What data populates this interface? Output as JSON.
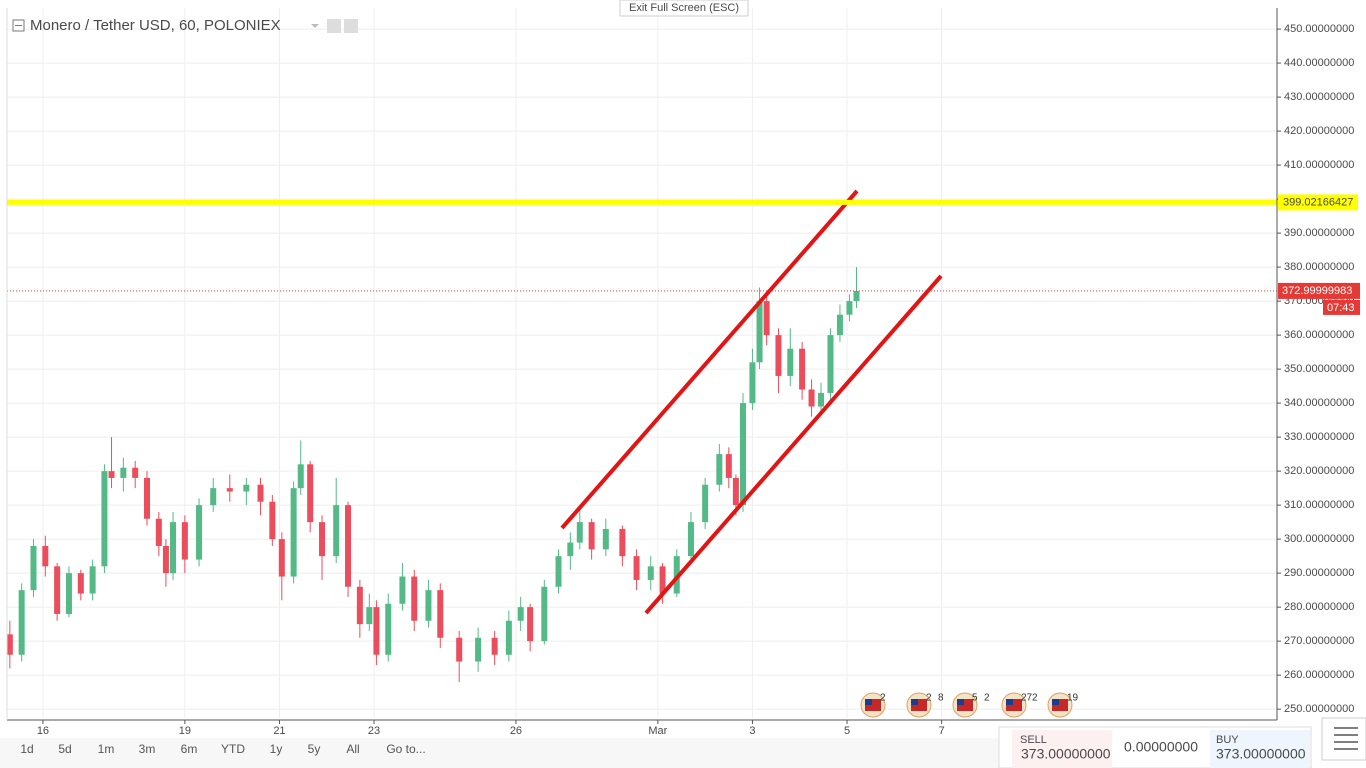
{
  "toolbar": {
    "symbol": "Monero / Tether USD, 60, POLONIEX",
    "exit": "Exit Full Screen (ESC)"
  },
  "chart_data": {
    "type": "candlestick",
    "x": [
      15.3,
      15.55,
      15.8,
      16.05,
      16.3,
      16.55,
      16.8,
      17.05,
      17.3,
      17.45,
      17.7,
      17.95,
      18.2,
      18.45,
      18.6,
      18.75,
      19.0,
      19.3,
      19.6,
      19.95,
      20.3,
      20.6,
      20.85,
      21.05,
      21.3,
      21.45,
      21.65,
      21.9,
      22.2,
      22.45,
      22.7,
      22.9,
      23.05,
      23.3,
      23.6,
      23.85,
      24.15,
      24.4,
      24.8,
      25.2,
      25.55,
      25.85,
      26.1,
      26.3,
      26.6,
      26.9,
      27.15,
      27.35,
      27.6,
      27.9,
      28.25,
      28.55,
      28.85,
      29.1,
      29.4,
      29.7,
      30.0,
      30.3,
      30.5,
      30.65,
      30.8,
      31.0,
      31.15,
      31.3,
      31.55,
      31.8,
      32.05,
      32.25,
      32.45,
      32.65,
      32.85,
      33.05,
      33.2
    ],
    "open": [
      272,
      266,
      285,
      298,
      292,
      278,
      290,
      284,
      292,
      320,
      318,
      321,
      318,
      306,
      298,
      290,
      305,
      294,
      310,
      315,
      314,
      316,
      311,
      300,
      289,
      315,
      322,
      305,
      295,
      310,
      286,
      275,
      280,
      266,
      281,
      289,
      276,
      285,
      271,
      264,
      271,
      266,
      276,
      280,
      270,
      286,
      295,
      299,
      305,
      297,
      303,
      295,
      288,
      292,
      284,
      295,
      305,
      316,
      325,
      318,
      310,
      340,
      352,
      370,
      360,
      348,
      356,
      344,
      339,
      343,
      360,
      366,
      370
    ],
    "high": [
      276,
      287,
      300,
      301,
      293,
      292,
      291,
      294,
      322,
      330,
      324,
      323,
      320,
      308,
      300,
      308,
      307,
      312,
      318,
      319,
      318,
      318,
      313,
      302,
      317,
      329,
      323,
      307,
      318,
      311,
      288,
      284,
      282,
      284,
      293,
      291,
      288,
      287,
      273,
      274,
      273,
      279,
      283,
      281,
      288,
      297,
      302,
      309,
      306,
      306,
      304,
      297,
      295,
      293,
      297,
      308,
      318,
      328,
      327,
      319,
      343,
      356,
      374,
      372,
      362,
      362,
      358,
      347,
      346,
      362,
      369,
      372,
      380
    ],
    "low": [
      262,
      264,
      283,
      289,
      276,
      277,
      282,
      282,
      290,
      315,
      314,
      315,
      304,
      295,
      286,
      288,
      290,
      292,
      308,
      311,
      310,
      307,
      298,
      282,
      287,
      313,
      302,
      288,
      293,
      283,
      271,
      273,
      263,
      264,
      279,
      273,
      274,
      268,
      258,
      261,
      263,
      264,
      273,
      267,
      269,
      284,
      291,
      297,
      294,
      295,
      292,
      285,
      285,
      281,
      283,
      293,
      303,
      314,
      315,
      307,
      308,
      338,
      350,
      357,
      343,
      345,
      341,
      336,
      337,
      341,
      358,
      364,
      368
    ],
    "close": [
      266,
      285,
      298,
      292,
      278,
      290,
      284,
      292,
      320,
      318,
      321,
      318,
      306,
      298,
      290,
      305,
      294,
      310,
      315,
      314,
      316,
      311,
      300,
      289,
      315,
      322,
      305,
      295,
      310,
      286,
      275,
      280,
      266,
      281,
      289,
      276,
      285,
      271,
      264,
      271,
      266,
      276,
      280,
      270,
      286,
      295,
      299,
      305,
      297,
      303,
      295,
      288,
      292,
      284,
      295,
      305,
      316,
      325,
      318,
      310,
      340,
      352,
      370,
      360,
      348,
      356,
      344,
      339,
      343,
      360,
      366,
      370,
      373
    ],
    "up_color": "#53b987",
    "down_color": "#eb4d5c",
    "xlim": [
      15.24,
      42.09
    ],
    "xticks": [
      16,
      19,
      21,
      23,
      26,
      {
        "value": 29,
        "label": "Mar"
      },
      {
        "value": 31,
        "label": "3"
      },
      {
        "value": 33,
        "label": "5"
      },
      {
        "value": 35,
        "label": "7"
      }
    ],
    "ylim": [
      247.4,
      456.2
    ],
    "yticks": [
      {
        "value": 250,
        "label": "250.00000000"
      },
      {
        "value": 260,
        "label": "260.00000000"
      },
      {
        "value": 270,
        "label": "270.00000000"
      },
      {
        "value": 280,
        "label": "280.00000000"
      },
      {
        "value": 290,
        "label": "290.00000000"
      },
      {
        "value": 300,
        "label": "300.00000000"
      },
      {
        "value": 310,
        "label": "310.00000000"
      },
      {
        "value": 320,
        "label": "320.00000000"
      },
      {
        "value": 330,
        "label": "330.00000000"
      },
      {
        "value": 340,
        "label": "340.00000000"
      },
      {
        "value": 350,
        "label": "350.00000000"
      },
      {
        "value": 360,
        "label": "360.00000000"
      },
      {
        "value": 370,
        "label": "370.00000000"
      },
      {
        "value": 380,
        "label": "380.00000000"
      },
      {
        "value": 390,
        "label": "390.00000000"
      },
      {
        "value": 400,
        "label": "400.00000000"
      },
      {
        "value": 410,
        "label": "410.00000000"
      },
      {
        "value": 420,
        "label": "420.00000000"
      },
      {
        "value": 430,
        "label": "430.00000000"
      },
      {
        "value": 440,
        "label": "440.00000000"
      },
      {
        "value": 450,
        "label": "450.00000000"
      }
    ],
    "grid": true,
    "horizontal_line": {
      "value": 399.02166427,
      "color": "#ffff00"
    },
    "last_price": {
      "value": 372.99999983,
      "color": "#e53935",
      "countdown": "07:43"
    }
  },
  "events": [
    "2",
    "2",
    "8",
    "5",
    "2",
    "27",
    "2",
    "19"
  ],
  "range_buttons": [
    "1d",
    "5d",
    "1m",
    "3m",
    "6m",
    "YTD",
    "1y",
    "5y",
    "All",
    "Go to..."
  ],
  "trade": {
    "sell_label": "SELL",
    "sell_price": "373.00000000",
    "spread": "0.00000000",
    "buy_label": "BUY",
    "buy_price": "373.00000000"
  }
}
